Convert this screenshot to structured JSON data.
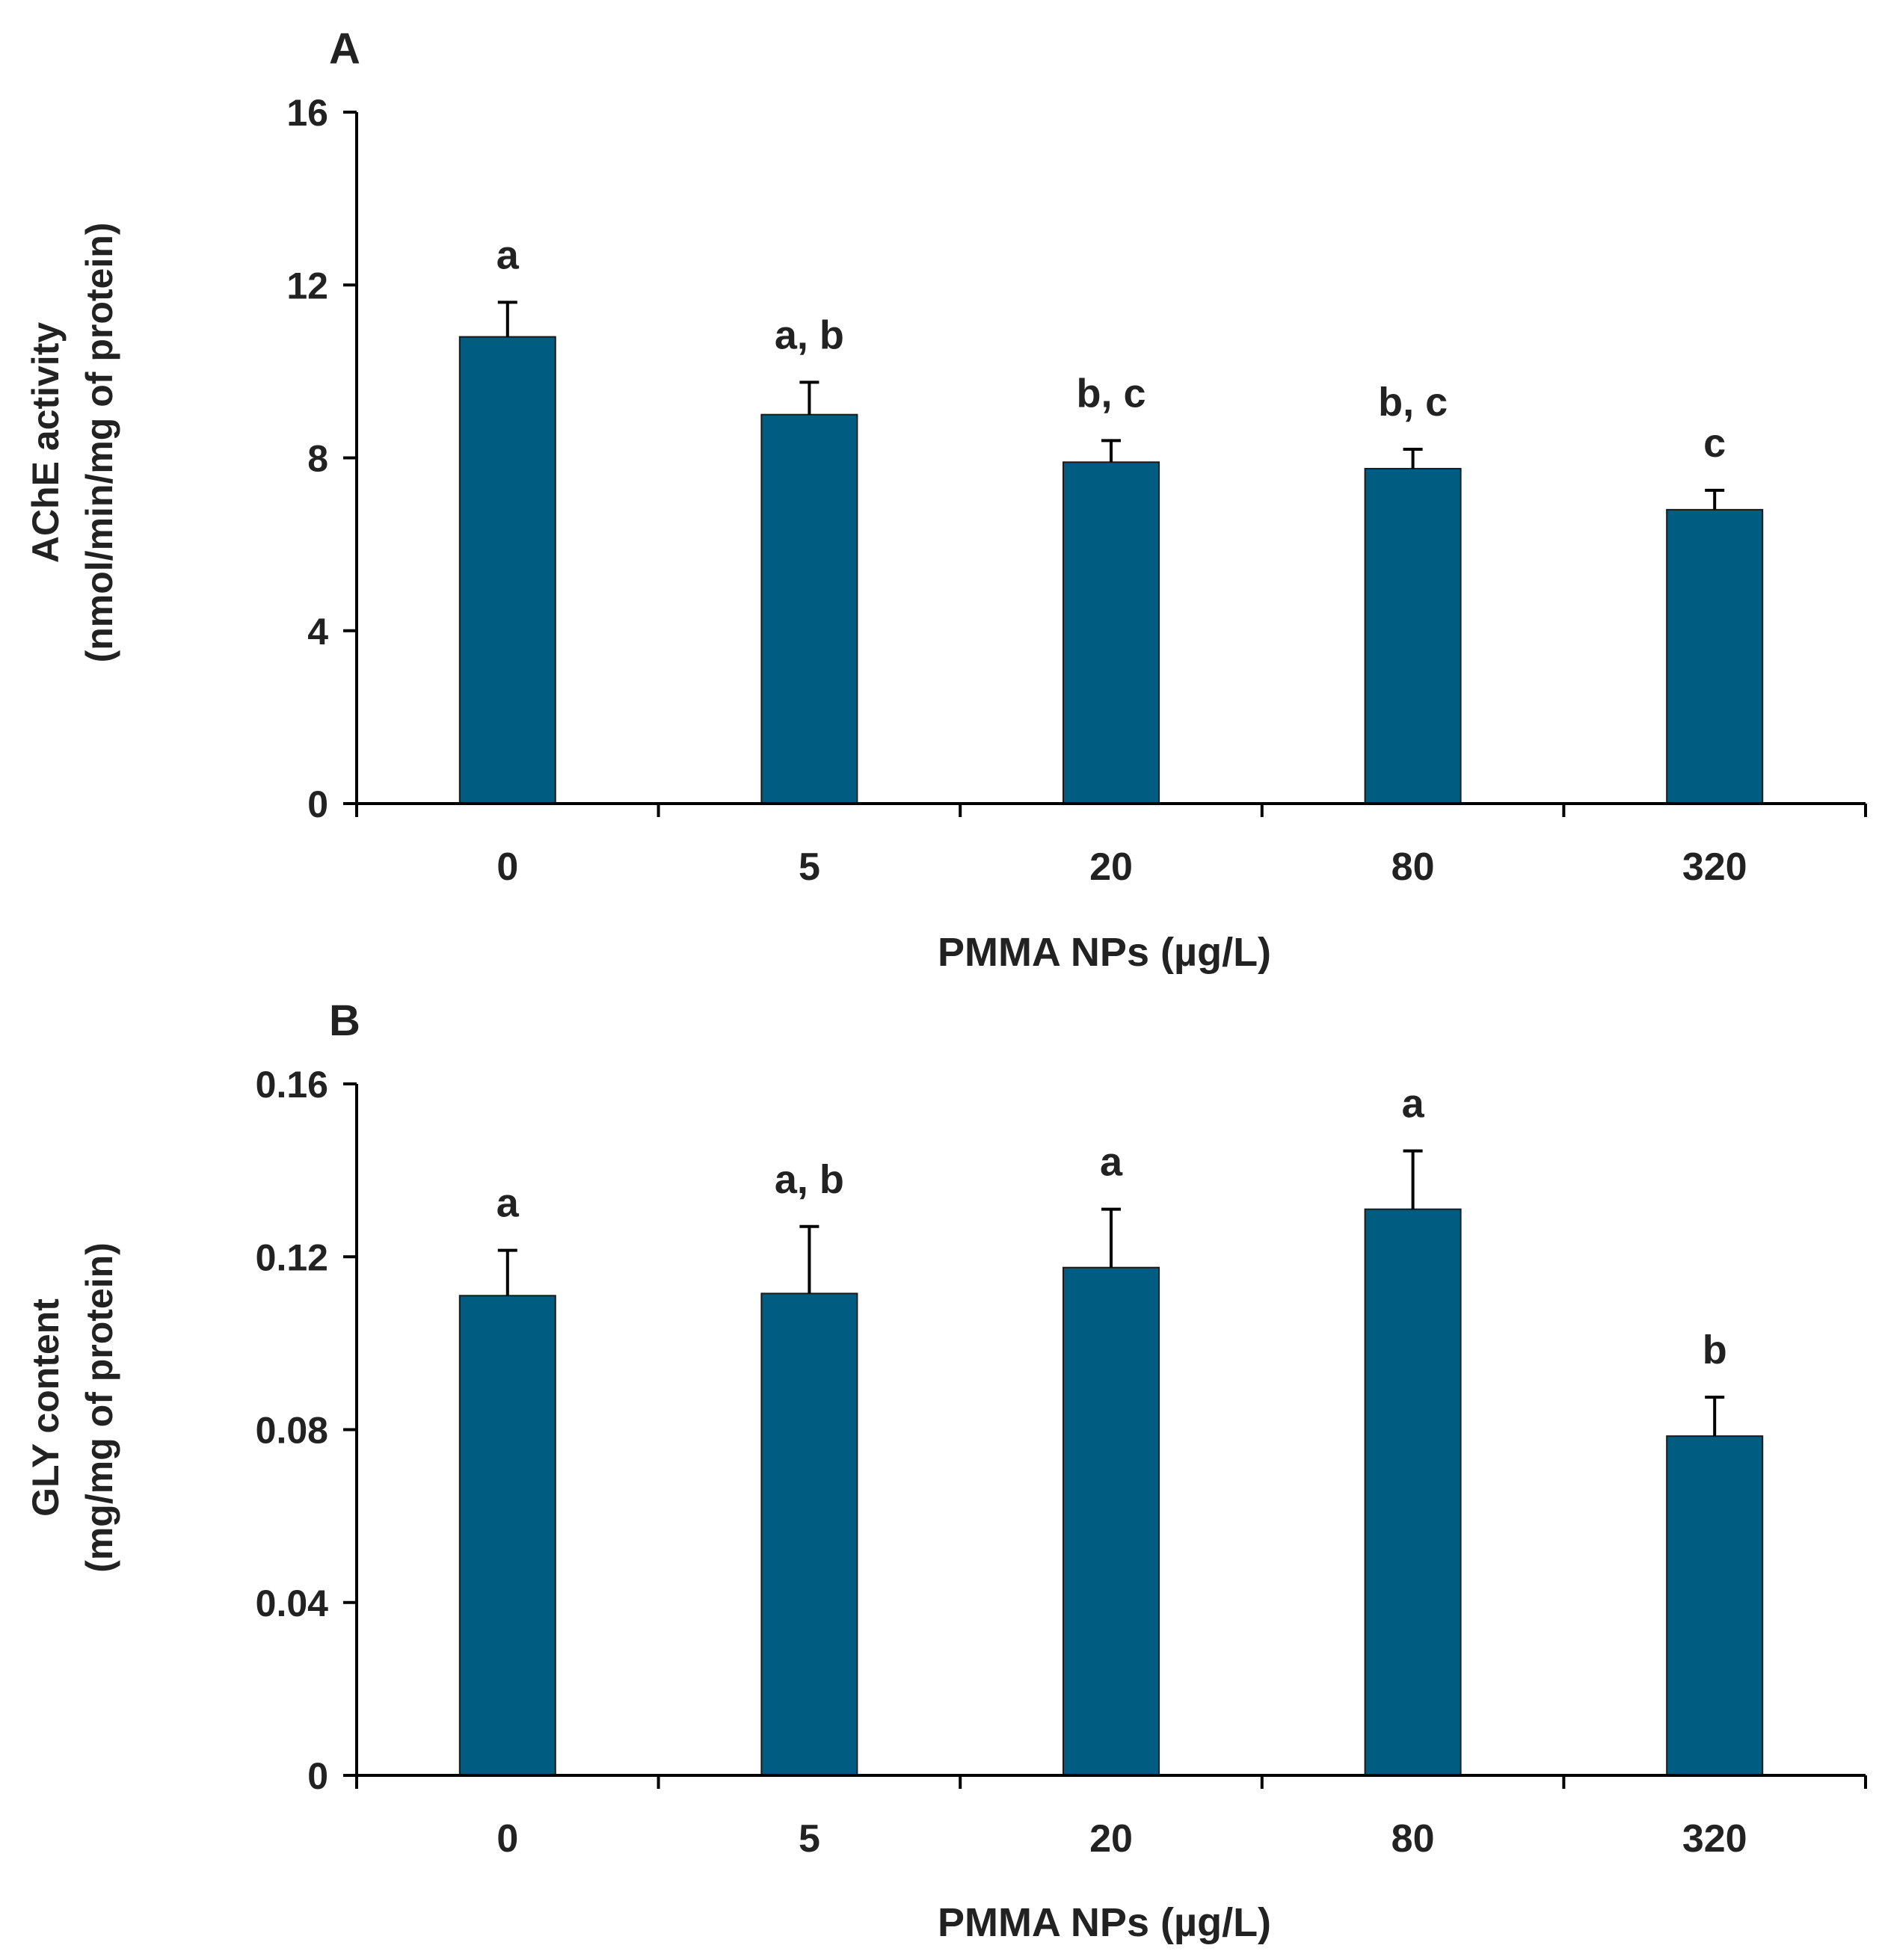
{
  "colors": {
    "bar": "#005C80",
    "axis": "#000000",
    "text": "#222222"
  },
  "chart_data": [
    {
      "panel_label": "A",
      "type": "bar",
      "xlabel": "PMMA NPs (µg/L)",
      "ylabel": "AChE activity",
      "ylabel_unit": "(nmol/min/mg of protein)",
      "categories": [
        "0",
        "5",
        "20",
        "80",
        "320"
      ],
      "values": [
        10.8,
        9.0,
        7.9,
        7.75,
        6.8
      ],
      "errors": [
        0.8,
        0.75,
        0.5,
        0.45,
        0.45
      ],
      "significance": [
        "a",
        "a, b",
        "b, c",
        "b, c",
        "c"
      ],
      "ylim": [
        0,
        16
      ],
      "yticks": [
        0,
        4,
        8,
        12,
        16
      ],
      "ytick_labels": [
        "0",
        "4",
        "8",
        "12",
        "16"
      ]
    },
    {
      "panel_label": "B",
      "type": "bar",
      "xlabel": "PMMA NPs (µg/L)",
      "ylabel": "GLY content",
      "ylabel_unit": "(mg/mg of protein)",
      "categories": [
        "0",
        "5",
        "20",
        "80",
        "320"
      ],
      "values": [
        0.111,
        0.1115,
        0.1175,
        0.131,
        0.0785
      ],
      "errors": [
        0.0105,
        0.0155,
        0.0135,
        0.0135,
        0.009
      ],
      "significance": [
        "a",
        "a, b",
        "a",
        "a",
        "b"
      ],
      "ylim": [
        0,
        0.16
      ],
      "yticks": [
        0,
        0.04,
        0.08,
        0.12,
        0.16
      ],
      "ytick_labels": [
        "0",
        "0.04",
        "0.08",
        "0.12",
        "0.16"
      ]
    }
  ]
}
